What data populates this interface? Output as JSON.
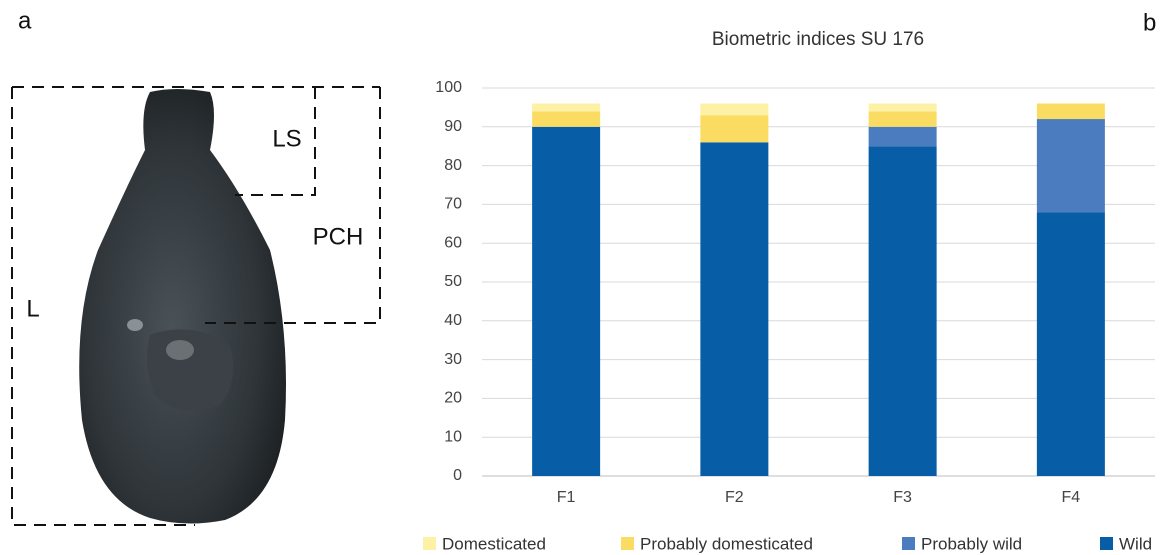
{
  "panel_a": {
    "label": "a",
    "annotations": {
      "ls": "LS",
      "pch": "PCH",
      "l": "L"
    }
  },
  "panel_b_label": "b",
  "chart_data": {
    "type": "stacked_bar",
    "title": "Biometric indices SU 176",
    "categories": [
      "F1",
      "F2",
      "F3",
      "F4"
    ],
    "series": [
      {
        "name": "Domesticated",
        "color": "#fdf1a6",
        "values": [
          2,
          3,
          2,
          0
        ]
      },
      {
        "name": "Probably domesticated",
        "color": "#fbdc63",
        "values": [
          4,
          7,
          4,
          4
        ]
      },
      {
        "name": "Probably wild",
        "color": "#4a7cbf",
        "values": [
          0,
          0,
          5,
          24
        ]
      },
      {
        "name": "Wild",
        "color": "#075da6",
        "values": [
          90,
          86,
          85,
          68
        ]
      }
    ],
    "ylim": [
      0,
      100
    ],
    "yticks": [
      0,
      10,
      20,
      30,
      40,
      50,
      60,
      70,
      80,
      90,
      100
    ],
    "grid": true
  }
}
